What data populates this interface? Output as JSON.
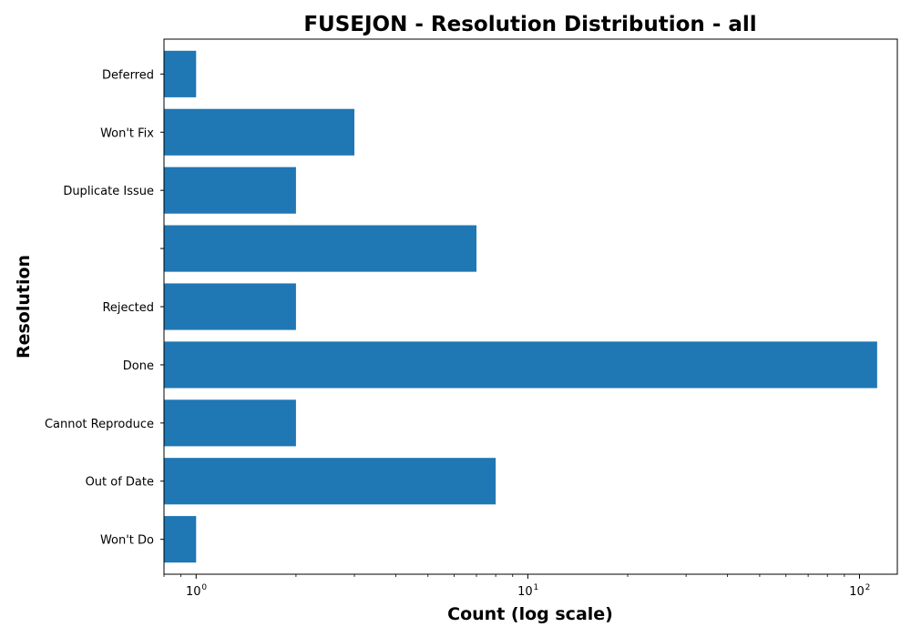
{
  "chart_data": {
    "type": "bar",
    "orientation": "horizontal",
    "title": "FUSEJON - Resolution Distribution - all",
    "xlabel": "Count (log scale)",
    "ylabel": "Resolution",
    "x_scale": "log",
    "xlim": [
      0.8,
      130
    ],
    "x_ticks": [
      {
        "value": 1,
        "base": "10",
        "exp": "0"
      },
      {
        "value": 10,
        "base": "10",
        "exp": "1"
      },
      {
        "value": 100,
        "base": "10",
        "exp": "2"
      }
    ],
    "categories": [
      "Won't Do",
      "Out of Date",
      "Cannot Reproduce",
      "Done",
      "Rejected",
      "",
      "Duplicate Issue",
      "Won't Fix",
      "Deferred"
    ],
    "values": [
      1,
      8,
      2,
      113,
      2,
      7,
      2,
      3,
      1
    ],
    "bar_color": "#1f77b4",
    "grid": false,
    "legend": "none"
  }
}
